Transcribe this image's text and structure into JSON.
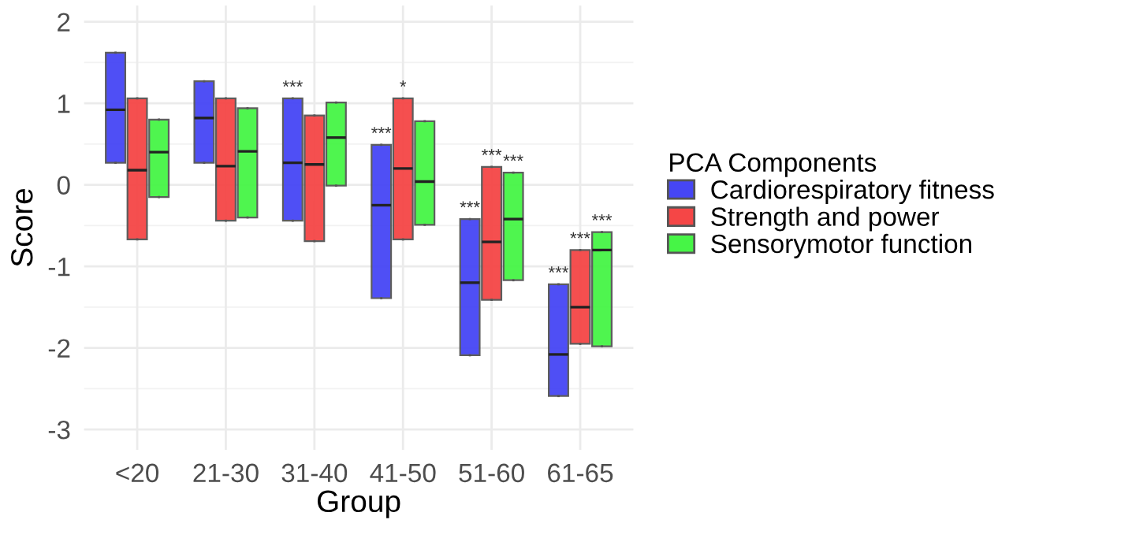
{
  "chart_data": {
    "type": "box",
    "xlabel": "Group",
    "ylabel": "Score",
    "legend_title": "PCA Components",
    "categories": [
      "<20",
      "21-30",
      "31-40",
      "41-50",
      "51-60",
      "61-65"
    ],
    "ylim": [
      -3.25,
      2.2
    ],
    "yticks": [
      -3,
      -2,
      -1,
      0,
      1,
      2
    ],
    "grid": true,
    "legend": "right",
    "series": [
      {
        "name": "Cardiorespiratory fitness",
        "color": "#4646f5",
        "boxes": [
          {
            "low": 0.27,
            "q1": 0.27,
            "median": 0.92,
            "q3": 1.62,
            "high": 1.62
          },
          {
            "low": 0.27,
            "q1": 0.27,
            "median": 0.82,
            "q3": 1.27,
            "high": 1.27
          },
          {
            "low": -0.44,
            "q1": -0.44,
            "median": 0.27,
            "q3": 1.06,
            "high": 1.06
          },
          {
            "low": -1.39,
            "q1": -1.39,
            "median": -0.25,
            "q3": 0.49,
            "high": 0.49
          },
          {
            "low": -2.09,
            "q1": -2.09,
            "median": -1.2,
            "q3": -0.42,
            "high": -0.42
          },
          {
            "low": -2.59,
            "q1": -2.59,
            "median": -2.08,
            "q3": -1.22,
            "high": -1.22
          }
        ],
        "value_labels": [
          null,
          null,
          "***",
          "***",
          "***",
          "***"
        ]
      },
      {
        "name": "Strength and power",
        "color": "#f54646",
        "boxes": [
          {
            "low": -0.67,
            "q1": -0.67,
            "median": 0.18,
            "q3": 1.06,
            "high": 1.06
          },
          {
            "low": -0.44,
            "q1": -0.44,
            "median": 0.23,
            "q3": 1.06,
            "high": 1.06
          },
          {
            "low": -0.69,
            "q1": -0.69,
            "median": 0.25,
            "q3": 0.85,
            "high": 0.85
          },
          {
            "low": -0.67,
            "q1": -0.67,
            "median": 0.2,
            "q3": 1.06,
            "high": 1.06
          },
          {
            "low": -1.41,
            "q1": -1.41,
            "median": -0.7,
            "q3": 0.22,
            "high": 0.22
          },
          {
            "low": -1.95,
            "q1": -1.95,
            "median": -1.5,
            "q3": -0.8,
            "high": -0.8
          }
        ],
        "value_labels": [
          null,
          null,
          null,
          "*",
          "***",
          "***"
        ]
      },
      {
        "name": "Sensorymotor function",
        "color": "#46f546",
        "boxes": [
          {
            "low": -0.15,
            "q1": -0.15,
            "median": 0.4,
            "q3": 0.8,
            "high": 0.8
          },
          {
            "low": -0.4,
            "q1": -0.4,
            "median": 0.41,
            "q3": 0.94,
            "high": 0.94
          },
          {
            "low": -0.01,
            "q1": -0.01,
            "median": 0.58,
            "q3": 1.01,
            "high": 1.01
          },
          {
            "low": -0.49,
            "q1": -0.49,
            "median": 0.04,
            "q3": 0.78,
            "high": 0.78
          },
          {
            "low": -1.17,
            "q1": -1.17,
            "median": -0.42,
            "q3": 0.15,
            "high": 0.15
          },
          {
            "low": -1.98,
            "q1": -1.98,
            "median": -0.8,
            "q3": -0.58,
            "high": -0.58
          }
        ],
        "value_labels": [
          null,
          null,
          null,
          null,
          "***",
          "***"
        ]
      }
    ]
  }
}
